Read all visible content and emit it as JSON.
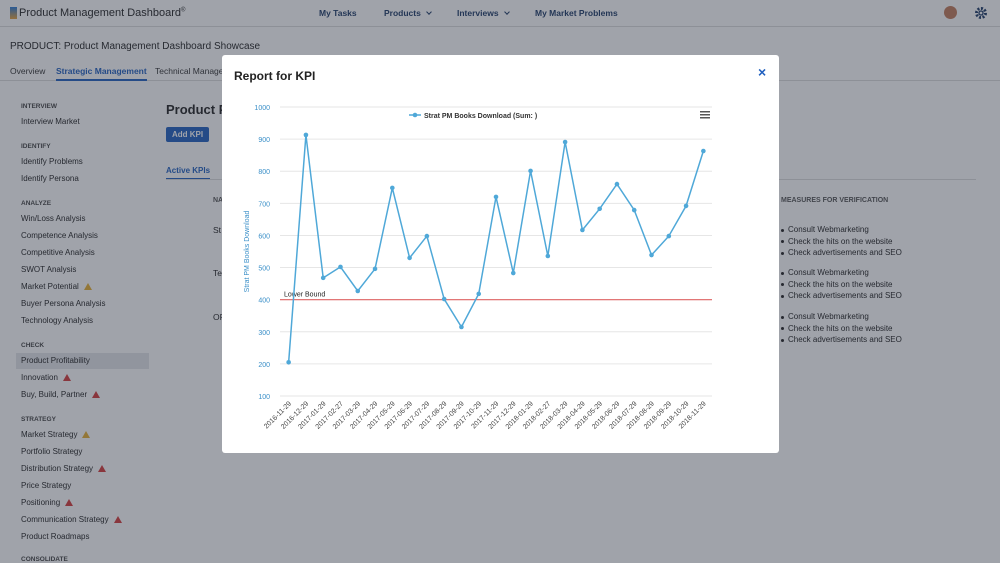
{
  "header": {
    "brand": "Product Management Dashboard",
    "brand_mark": "®",
    "nav": [
      {
        "label": "My Tasks",
        "dropdown": false
      },
      {
        "label": "Products",
        "dropdown": true
      },
      {
        "label": "Interviews",
        "dropdown": true
      },
      {
        "label": "My Market Problems",
        "dropdown": false
      }
    ]
  },
  "product_title": "PRODUCT: Product Management Dashboard Showcase",
  "tabs": [
    {
      "label": "Overview",
      "active": false
    },
    {
      "label": "Strategic Management",
      "active": true
    },
    {
      "label": "Technical Manage",
      "active": false
    }
  ],
  "sidebar": [
    {
      "heading": "INTERVIEW",
      "items": [
        {
          "label": "Interview Market"
        }
      ]
    },
    {
      "heading": "IDENTIFY",
      "items": [
        {
          "label": "Identify Problems"
        },
        {
          "label": "Identify Persona"
        }
      ]
    },
    {
      "heading": "ANALYZE",
      "items": [
        {
          "label": "Win/Loss Analysis"
        },
        {
          "label": "Competence Analysis"
        },
        {
          "label": "Competitive Analysis"
        },
        {
          "label": "SWOT Analysis"
        },
        {
          "label": "Market Potential",
          "alert": "warning"
        },
        {
          "label": "Buyer Persona Analysis"
        },
        {
          "label": "Technology Analysis"
        }
      ]
    },
    {
      "heading": "CHECK",
      "items": [
        {
          "label": "Product Profitability",
          "active": true
        },
        {
          "label": "Innovation",
          "alert": "danger"
        },
        {
          "label": "Buy, Build, Partner",
          "alert": "danger"
        }
      ]
    },
    {
      "heading": "STRATEGY",
      "items": [
        {
          "label": "Market Strategy",
          "alert": "warning"
        },
        {
          "label": "Portfolio Strategy"
        },
        {
          "label": "Distribution Strategy",
          "alert": "danger"
        },
        {
          "label": "Price Strategy"
        },
        {
          "label": "Positioning",
          "alert": "danger"
        },
        {
          "label": "Communication Strategy",
          "alert": "danger"
        },
        {
          "label": "Product Roadmaps"
        }
      ]
    },
    {
      "heading": "CONSOLIDATE",
      "items": []
    }
  ],
  "main": {
    "heading": "Product Pr",
    "button": "Add KPI",
    "subtab": "Active KPIs",
    "column": "NA",
    "rows": [
      "St",
      "Te",
      "OF"
    ],
    "measures_header": "MEASURES FOR VERIFICATION",
    "measures": [
      [
        "Consult Webmarketing",
        "Check the hits on the website",
        "Check advertisements and SEO"
      ],
      [
        "Consult Webmarketing",
        "Check the hits on the website",
        "Check advertisements and SEO"
      ],
      [
        "Consult Webmarketing",
        "Check the hits on the website",
        "Check advertisements and SEO"
      ]
    ]
  },
  "modal": {
    "title": "Report for KPI",
    "close": "×"
  },
  "chart_data": {
    "type": "line",
    "y_label": "Strat PM Books Download",
    "categories": [
      "2016-11-29",
      "2016-12-29",
      "2017-01-29",
      "2017-02-27",
      "2017-03-29",
      "2017-04-29",
      "2017-05-29",
      "2017-06-29",
      "2017-07-29",
      "2017-08-29",
      "2017-09-29",
      "2017-10-29",
      "2017-11-29",
      "2017-12-29",
      "2018-01-29",
      "2018-02-27",
      "2018-03-29",
      "2018-04-29",
      "2018-05-29",
      "2018-06-29",
      "2018-07-29",
      "2018-08-29",
      "2018-09-29",
      "2018-10-29",
      "2018-11-29"
    ],
    "series": [
      {
        "name": "Strat PM Books Download (Sum: )",
        "color": "#4fa8d8",
        "values": [
          205,
          913,
          468,
          502,
          427,
          496,
          748,
          530,
          598,
          402,
          315,
          418,
          720,
          483,
          801,
          536,
          891,
          617,
          683,
          760,
          679,
          539,
          598,
          692,
          863
        ]
      }
    ],
    "ylim": [
      100,
      1000
    ],
    "yticks": [
      100,
      200,
      300,
      400,
      500,
      600,
      700,
      800,
      900,
      1000
    ],
    "grid": true,
    "plot_lines": [
      {
        "label": "Lower Bound",
        "value": 400,
        "color": "#e06666"
      }
    ]
  }
}
